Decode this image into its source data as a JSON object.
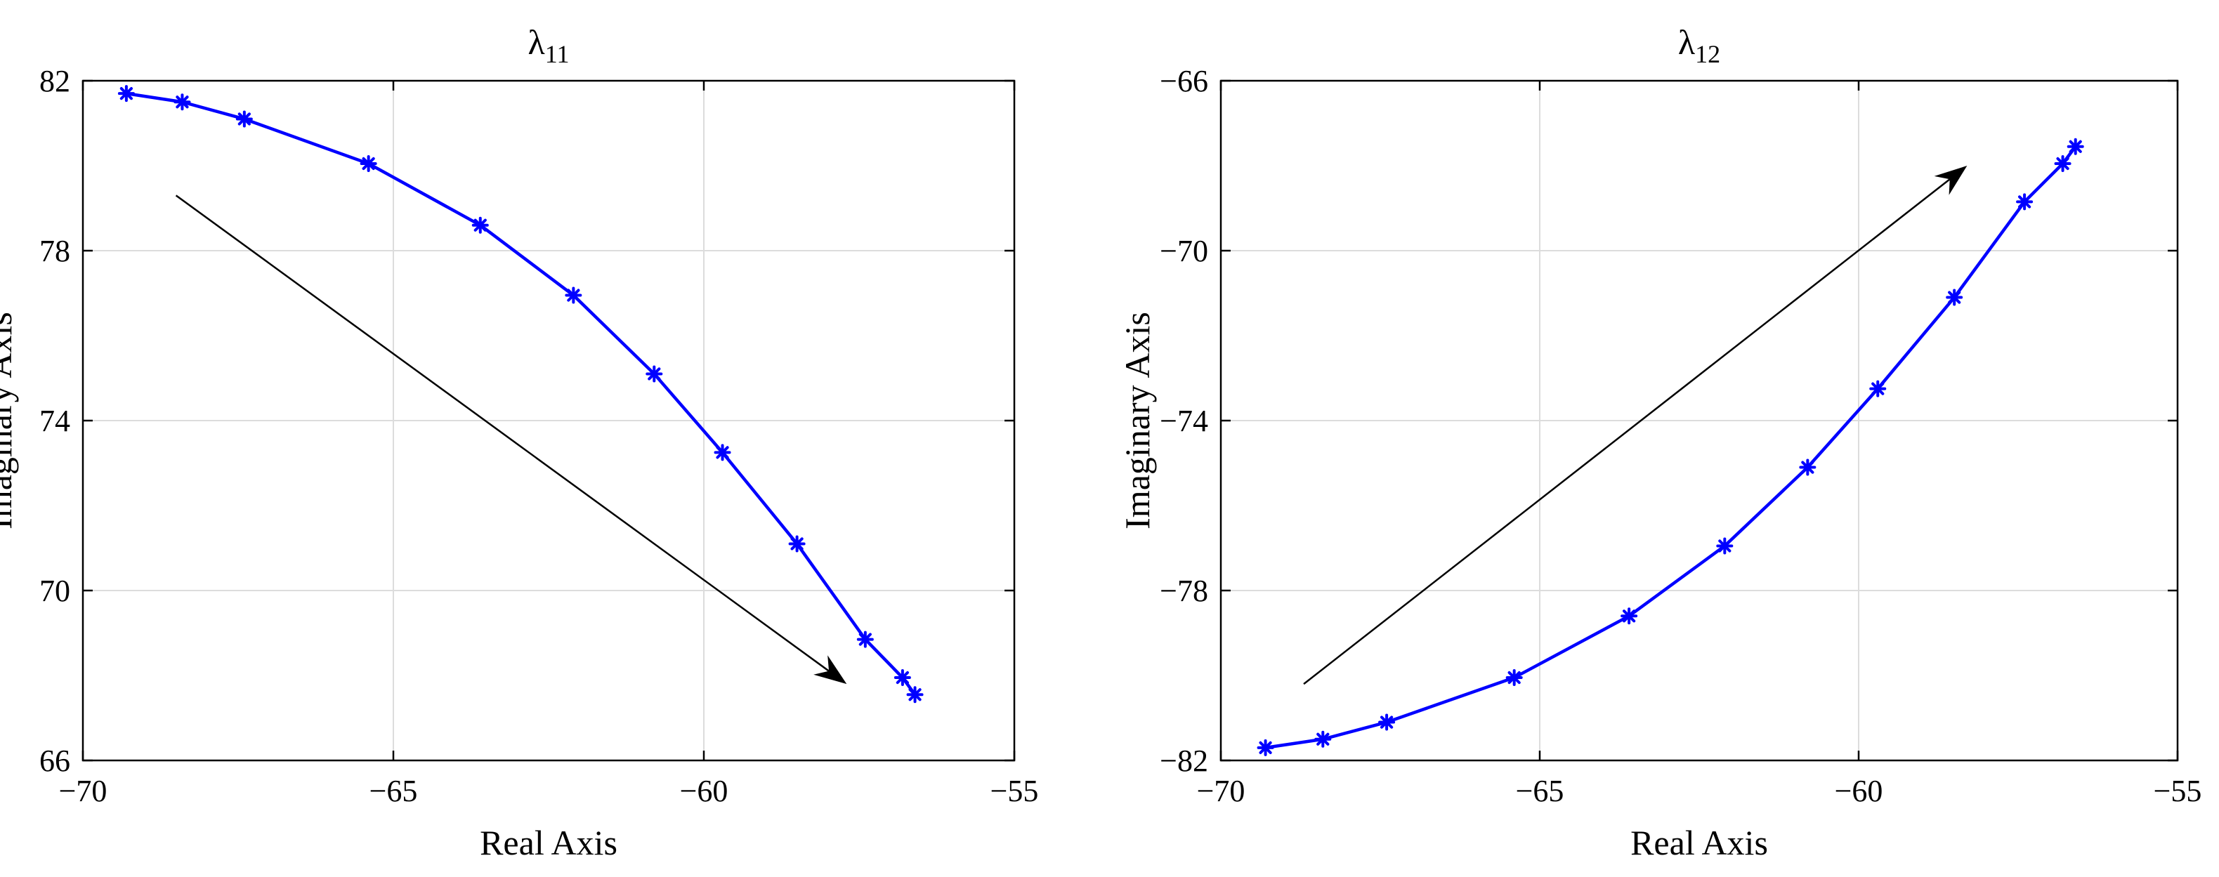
{
  "chart_data": [
    {
      "type": "line",
      "title": "λ",
      "title_subscript": "11",
      "xlabel": "Real Axis",
      "ylabel": "Imaginary Axis",
      "xlim": [
        -70,
        -55
      ],
      "ylim": [
        66,
        82
      ],
      "xticks": [
        -70,
        -65,
        -60,
        -55
      ],
      "yticks": [
        66,
        70,
        74,
        78,
        82
      ],
      "xtick_labels": [
        "−70",
        "−65",
        "−60",
        "−55"
      ],
      "ytick_labels": [
        "66",
        "70",
        "74",
        "78",
        "82"
      ],
      "grid": true,
      "series": [
        {
          "color": "#0000ff",
          "marker": "asterisk",
          "x": [
            -69.3,
            -68.4,
            -67.4,
            -65.4,
            -63.6,
            -62.1,
            -60.8,
            -59.7,
            -58.5,
            -57.4,
            -56.8,
            -56.6
          ],
          "y": [
            81.7,
            81.5,
            81.1,
            80.05,
            78.6,
            76.95,
            75.1,
            73.25,
            71.1,
            68.85,
            67.95,
            67.55
          ]
        }
      ],
      "annotations": [
        {
          "type": "arrow",
          "from": [
            -68.5,
            79.3
          ],
          "to": [
            -57.7,
            67.8
          ],
          "color": "#000000"
        }
      ]
    },
    {
      "type": "line",
      "title": "λ",
      "title_subscript": "12",
      "xlabel": "Real Axis",
      "ylabel": "Imaginary Axis",
      "xlim": [
        -70,
        -55
      ],
      "ylim": [
        -82,
        -66
      ],
      "xticks": [
        -70,
        -65,
        -60,
        -55
      ],
      "yticks": [
        -82,
        -78,
        -74,
        -70,
        -66
      ],
      "xtick_labels": [
        "−70",
        "−65",
        "−60",
        "−55"
      ],
      "ytick_labels": [
        "−82",
        "−78",
        "−74",
        "−70",
        "−66"
      ],
      "grid": true,
      "series": [
        {
          "color": "#0000ff",
          "marker": "asterisk",
          "x": [
            -69.3,
            -68.4,
            -67.4,
            -65.4,
            -63.6,
            -62.1,
            -60.8,
            -59.7,
            -58.5,
            -57.4,
            -56.8,
            -56.6
          ],
          "y": [
            -81.7,
            -81.5,
            -81.1,
            -80.05,
            -78.6,
            -76.95,
            -75.1,
            -73.25,
            -71.1,
            -68.85,
            -67.95,
            -67.55
          ]
        }
      ],
      "annotations": [
        {
          "type": "arrow",
          "from": [
            -68.7,
            -80.2
          ],
          "to": [
            -58.3,
            -68.0
          ],
          "color": "#000000"
        }
      ]
    }
  ]
}
